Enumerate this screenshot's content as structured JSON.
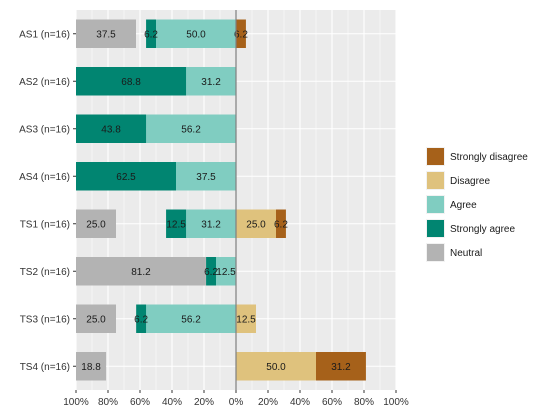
{
  "chart_data": {
    "type": "bar",
    "orientation": "horizontal-diverging",
    "title": "",
    "xlabel": "",
    "ylabel": "",
    "xlim": [
      -1.0,
      1.0
    ],
    "x_tick_values": [
      -1.0,
      -0.8,
      -0.6,
      -0.4,
      -0.2,
      0,
      0.2,
      0.4,
      0.6,
      0.8,
      1.0
    ],
    "x_tick_labels": [
      "100%",
      "80%",
      "60%",
      "40%",
      "20%",
      "0%",
      "20%",
      "40%",
      "60%",
      "80%",
      "100%"
    ],
    "grid": true,
    "legend_position": "right",
    "categories": [
      "AS1 (n=16)",
      "AS2 (n=16)",
      "AS3 (n=16)",
      "AS4 (n=16)",
      "TS1 (n=16)",
      "TS2 (n=16)",
      "TS3 (n=16)",
      "TS4 (n=16)"
    ],
    "series": [
      {
        "name": "Strongly disagree",
        "color": "#A6611A",
        "side": "positive",
        "order": 1,
        "values": [
          6.2,
          0,
          0,
          0,
          6.2,
          0,
          0,
          31.2
        ]
      },
      {
        "name": "Disagree",
        "color": "#DFC27D",
        "side": "positive",
        "order": 0,
        "values": [
          0,
          0,
          0,
          0,
          25.0,
          0,
          12.5,
          50.0
        ]
      },
      {
        "name": "Agree",
        "color": "#80CDC1",
        "side": "negative",
        "order": 0,
        "values": [
          50.0,
          31.2,
          56.2,
          37.5,
          31.2,
          12.5,
          56.2,
          0
        ]
      },
      {
        "name": "Strongly agree",
        "color": "#018571",
        "side": "negative",
        "order": 1,
        "values": [
          6.2,
          68.8,
          43.8,
          62.5,
          12.5,
          6.2,
          6.2,
          0
        ]
      },
      {
        "name": "Neutral",
        "color": "#B3B3B3",
        "side": "neutral",
        "order": 0,
        "values": [
          37.5,
          0,
          0,
          0,
          25.0,
          81.2,
          25.0,
          18.8
        ]
      }
    ]
  }
}
